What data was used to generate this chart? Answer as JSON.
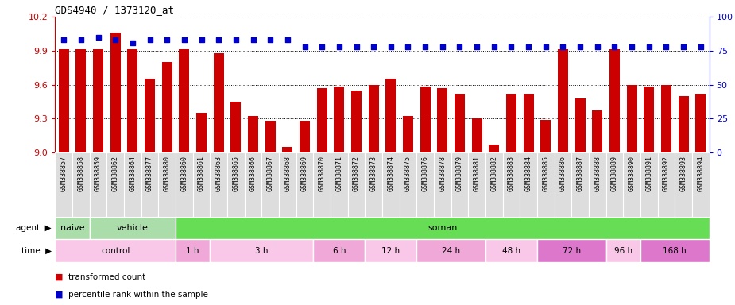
{
  "title": "GDS4940 / 1373120_at",
  "bar_color": "#cc0000",
  "dot_color": "#0000cc",
  "ylim_left": [
    9.0,
    10.2
  ],
  "ylim_right": [
    0,
    100
  ],
  "yticks_left": [
    9.0,
    9.3,
    9.6,
    9.9,
    10.2
  ],
  "yticks_right": [
    0,
    25,
    50,
    75,
    100
  ],
  "categories": [
    "GSM338857",
    "GSM338858",
    "GSM338859",
    "GSM338862",
    "GSM338864",
    "GSM338877",
    "GSM338880",
    "GSM338860",
    "GSM338861",
    "GSM338863",
    "GSM338865",
    "GSM338866",
    "GSM338867",
    "GSM338868",
    "GSM338869",
    "GSM338870",
    "GSM338871",
    "GSM338872",
    "GSM338873",
    "GSM338874",
    "GSM338875",
    "GSM338876",
    "GSM338878",
    "GSM338879",
    "GSM338881",
    "GSM338882",
    "GSM338883",
    "GSM338884",
    "GSM338885",
    "GSM338886",
    "GSM338887",
    "GSM338888",
    "GSM338889",
    "GSM338890",
    "GSM338891",
    "GSM338892",
    "GSM338893",
    "GSM338894"
  ],
  "bar_values": [
    9.91,
    9.91,
    9.91,
    10.06,
    9.91,
    9.65,
    9.8,
    9.91,
    9.35,
    9.88,
    9.45,
    9.32,
    9.28,
    9.05,
    9.28,
    9.57,
    9.58,
    9.55,
    9.6,
    9.65,
    9.32,
    9.58,
    9.57,
    9.52,
    9.3,
    9.07,
    9.52,
    9.52,
    9.29,
    9.91,
    9.48,
    9.37,
    9.91,
    9.6,
    9.58,
    9.6,
    9.5,
    9.52
  ],
  "dot_values": [
    83,
    83,
    85,
    83,
    81,
    83,
    83,
    83,
    83,
    83,
    83,
    83,
    83,
    83,
    78,
    78,
    78,
    78,
    78,
    78,
    78,
    78,
    78,
    78,
    78,
    78,
    78,
    78,
    78,
    78,
    78,
    78,
    78,
    78,
    78,
    78,
    78,
    78
  ],
  "agent_groups_naive": {
    "label": "naive",
    "count": 2,
    "color": "#aaddaa"
  },
  "agent_groups_vehicle": {
    "label": "vehicle",
    "count": 5,
    "color": "#aaddaa"
  },
  "agent_groups_soman": {
    "label": "soman",
    "count": 31,
    "color": "#66dd55"
  },
  "time_groups": [
    {
      "label": "control",
      "count": 7,
      "color": "#f9c8e8"
    },
    {
      "label": "1 h",
      "count": 2,
      "color": "#f0a8d8"
    },
    {
      "label": "3 h",
      "count": 6,
      "color": "#f9c8e8"
    },
    {
      "label": "6 h",
      "count": 3,
      "color": "#f0a8d8"
    },
    {
      "label": "12 h",
      "count": 3,
      "color": "#f9c8e8"
    },
    {
      "label": "24 h",
      "count": 4,
      "color": "#f0a8d8"
    },
    {
      "label": "48 h",
      "count": 3,
      "color": "#f9c8e8"
    },
    {
      "label": "72 h",
      "count": 4,
      "color": "#dd77cc"
    },
    {
      "label": "96 h",
      "count": 2,
      "color": "#f9c8e8"
    },
    {
      "label": "168 h",
      "count": 4,
      "color": "#dd77cc"
    }
  ],
  "legend_bar_label": "transformed count",
  "legend_dot_label": "percentile rank within the sample",
  "bg_color": "#ffffff",
  "tick_label_bg": "#dddddd",
  "bar_width": 0.6
}
